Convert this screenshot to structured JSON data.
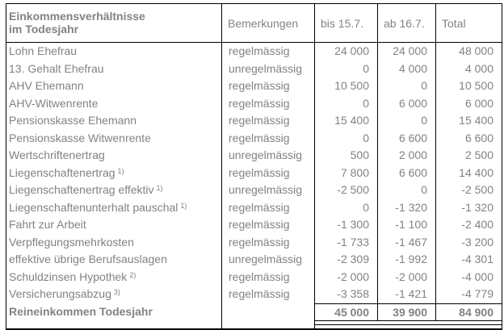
{
  "table": {
    "header": {
      "col1_line1": "Einkommensverhältnisse",
      "col1_line2": "im Todesjahr",
      "col2": "Bemerkungen",
      "col3": "bis 15.7.",
      "col4": "ab 16.7.",
      "col5": "Total"
    },
    "rows": [
      {
        "label": "Lohn Ehefrau",
        "sup": "",
        "remark": "regelmässig",
        "until": "24 000",
        "from": "24 000",
        "total": "48 000"
      },
      {
        "label": "13. Gehalt Ehefrau",
        "sup": "",
        "remark": "unregelmässig",
        "until": "0",
        "from": "4 000",
        "total": "4 000"
      },
      {
        "label": "AHV Ehemann",
        "sup": "",
        "remark": "regelmässig",
        "until": "10 500",
        "from": "0",
        "total": "10 500"
      },
      {
        "label": "AHV-Witwenrente",
        "sup": "",
        "remark": "regelmässig",
        "until": "0",
        "from": "6 000",
        "total": "6 000"
      },
      {
        "label": "Pensionskasse Ehemann",
        "sup": "",
        "remark": "regelmässig",
        "until": "15 400",
        "from": "0",
        "total": "15 400"
      },
      {
        "label": "Pensionskasse Witwenrente",
        "sup": "",
        "remark": "regelmässig",
        "until": "0",
        "from": "6 600",
        "total": "6 600"
      },
      {
        "label": "Wertschriftenertrag",
        "sup": "",
        "remark": "unregelmässig",
        "until": "500",
        "from": "2 000",
        "total": "2 500"
      },
      {
        "label": "Liegenschaftenertrag",
        "sup": "1)",
        "remark": "regelmässig",
        "until": "7 800",
        "from": "6 600",
        "total": "14 400"
      },
      {
        "label": "Liegenschaftenertrag effektiv",
        "sup": "1)",
        "remark": "unregelmässig",
        "until": "-2 500",
        "from": "0",
        "total": "-2 500"
      },
      {
        "label": "Liegenschaftenunterhalt pauschal",
        "sup": "1)",
        "remark": "regelmässig",
        "until": "0",
        "from": "-1 320",
        "total": "-1 320"
      },
      {
        "label": "Fahrt zur Arbeit",
        "sup": "",
        "remark": "regelmässig",
        "until": "-1 300",
        "from": "-1 100",
        "total": "-2 400"
      },
      {
        "label": "Verpflegungsmehrkosten",
        "sup": "",
        "remark": "regelmässig",
        "until": "-1 733",
        "from": "-1 467",
        "total": "-3 200"
      },
      {
        "label": "effektive übrige Berufsauslagen",
        "sup": "",
        "remark": "unregelmässig",
        "until": "-2 309",
        "from": "-1 992",
        "total": "-4 301"
      },
      {
        "label": "Schuldzinsen Hypothek",
        "sup": "2)",
        "remark": "regelmässig",
        "until": "-2 000",
        "from": "-2 000",
        "total": "-4 000"
      },
      {
        "label": "Versicherungsabzug",
        "sup": "3)",
        "remark": "regelmässig",
        "until": "-3 358",
        "from": "-1 421",
        "total": "-4 779"
      }
    ],
    "total_row": {
      "label": "Reineinkommen Todesjahr",
      "remark": "",
      "until": "45 000",
      "from": "39 900",
      "total": "84 900"
    }
  },
  "colors": {
    "text": "#828282",
    "border": "#000000",
    "background": "#ffffff"
  }
}
